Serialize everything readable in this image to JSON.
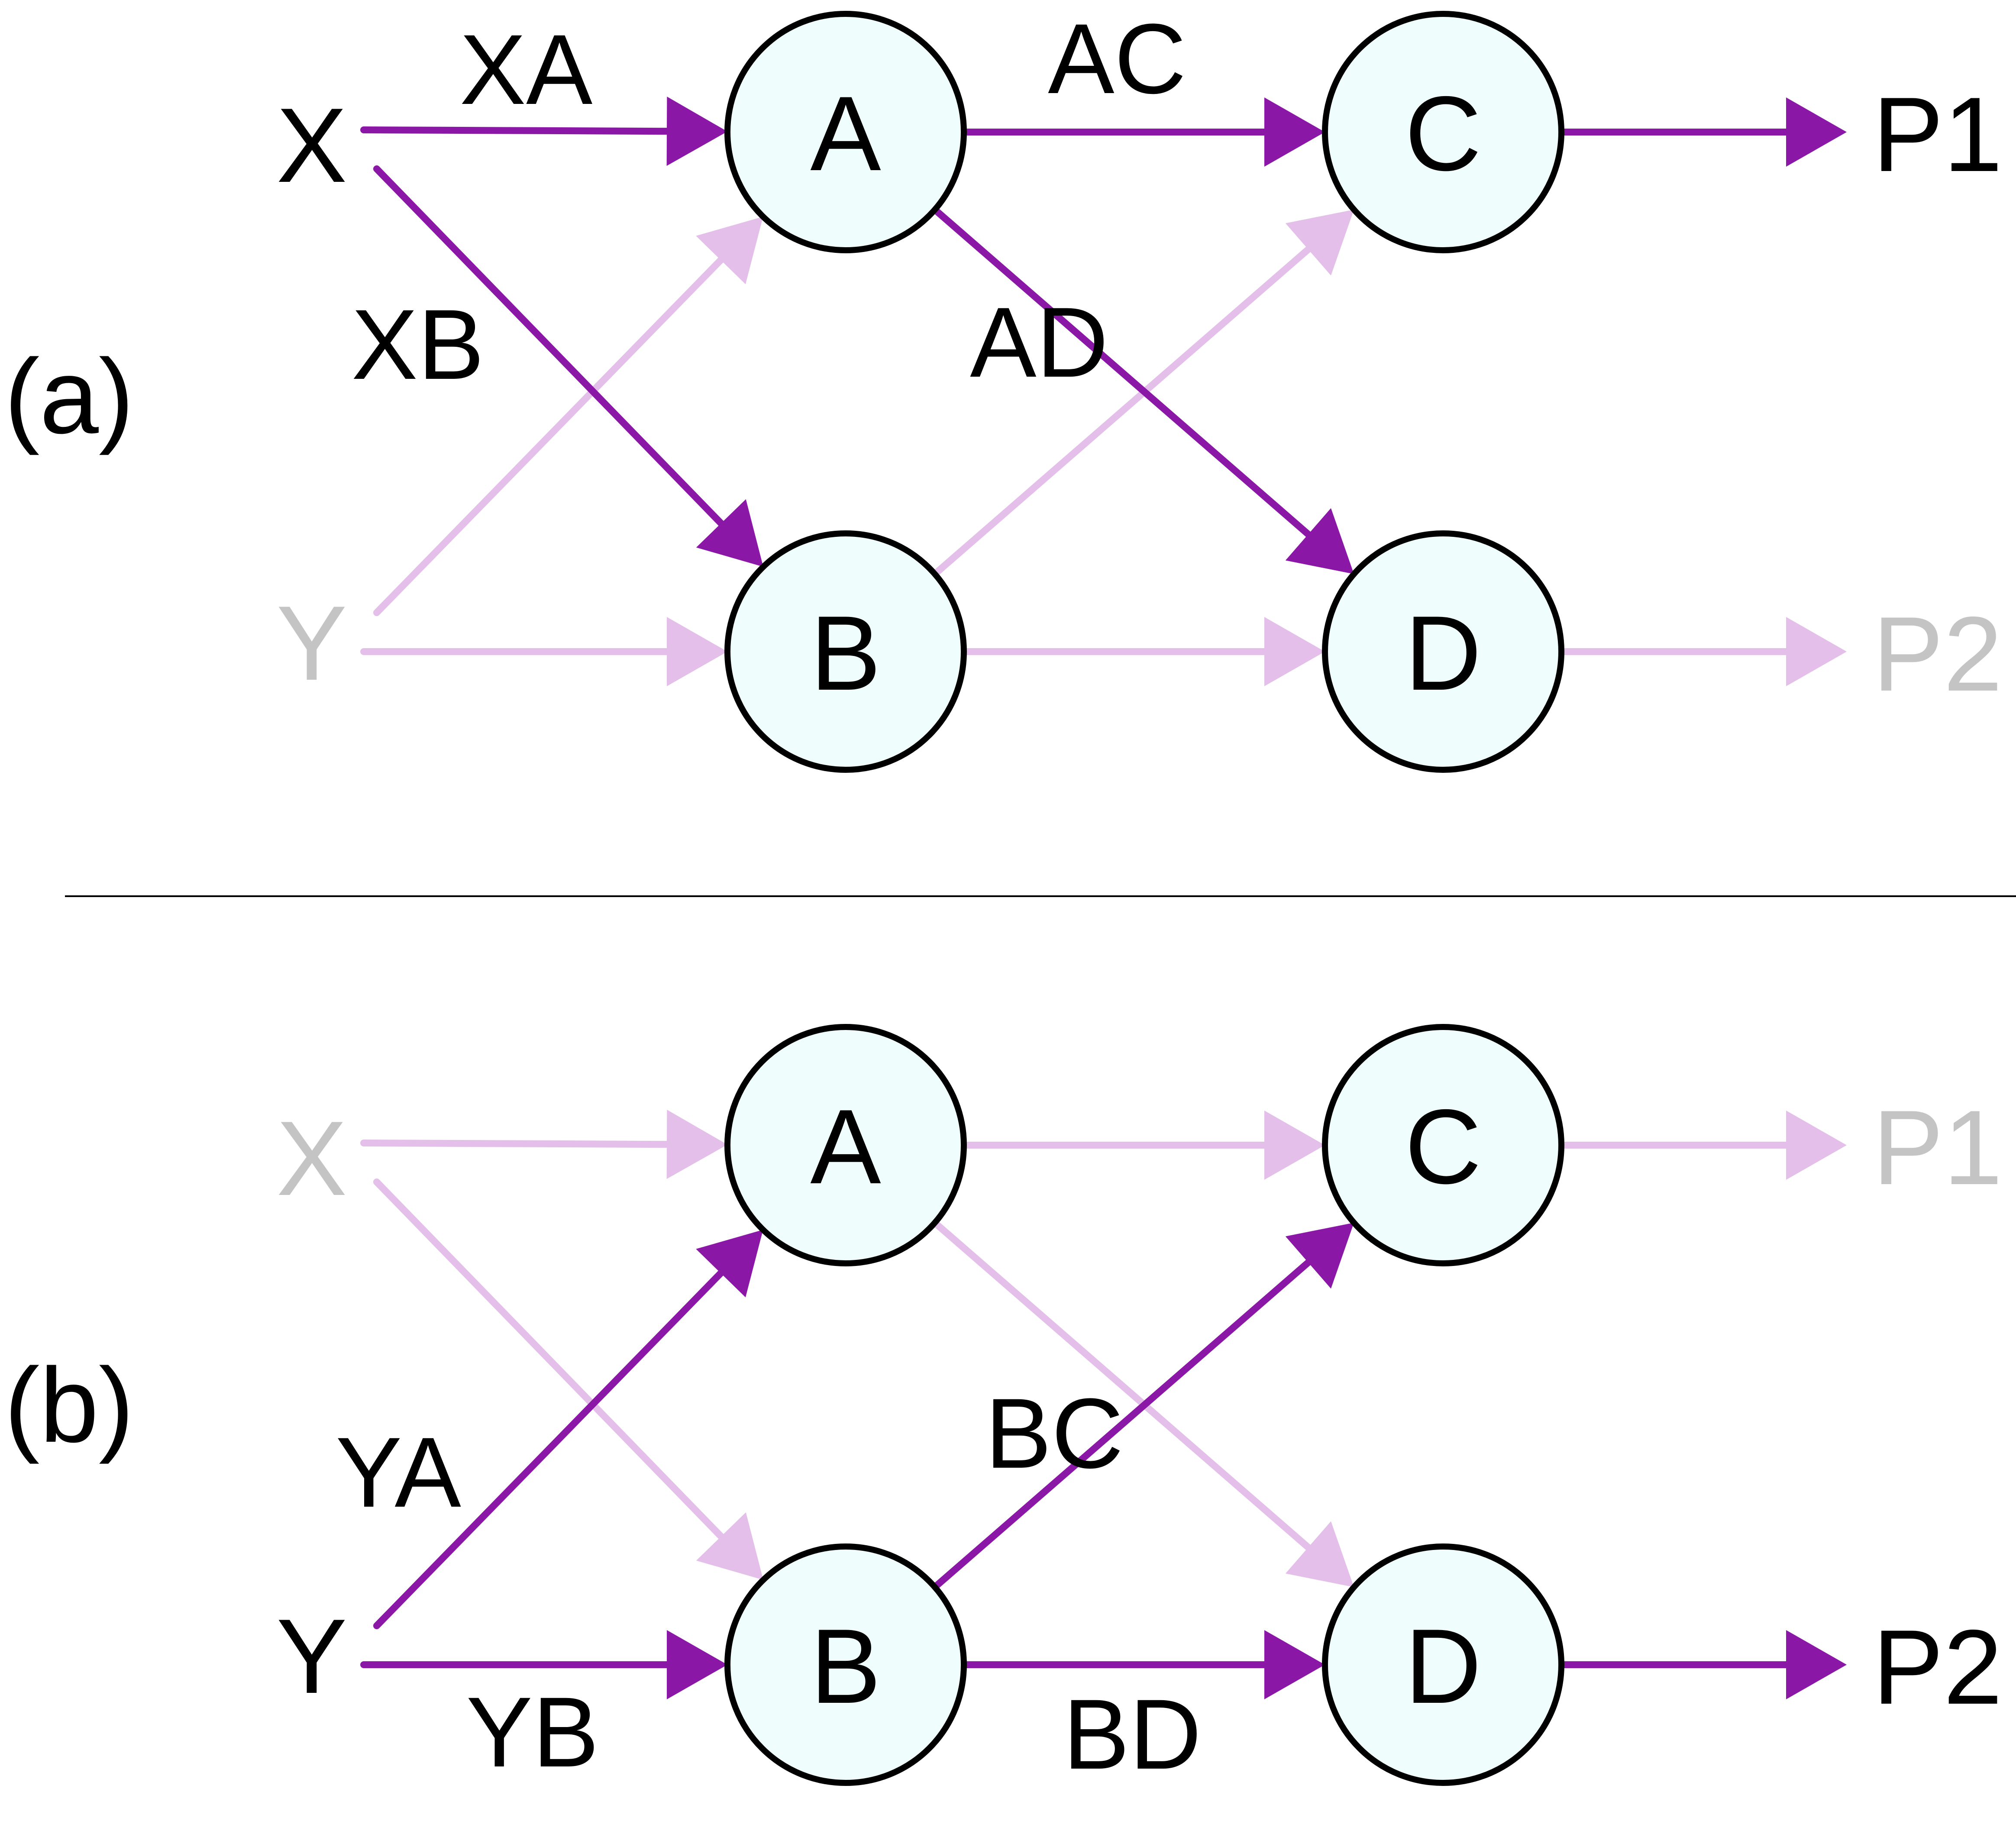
{
  "colors": {
    "active_edge": "#8B17A6",
    "faded_edge": "#E3BFEA",
    "active_text": "#000000",
    "faded_text": "#C4C4C4",
    "node_fill": "#EFFDFD",
    "node_stroke": "#000000",
    "divider": "#000000"
  },
  "panels": [
    {
      "id": "a",
      "tag": "(a)",
      "inputs": [
        {
          "label": "X",
          "active": true
        },
        {
          "label": "Y",
          "active": false
        }
      ],
      "nodes": {
        "A": "A",
        "B": "B",
        "C": "C",
        "D": "D"
      },
      "outputs": [
        {
          "label": "P1",
          "active": true
        },
        {
          "label": "P2",
          "active": false
        }
      ],
      "edges": [
        {
          "from": "X",
          "to": "A",
          "active": true,
          "label": "XA"
        },
        {
          "from": "X",
          "to": "B",
          "active": true,
          "label": "XB"
        },
        {
          "from": "Y",
          "to": "A",
          "active": false,
          "label": ""
        },
        {
          "from": "Y",
          "to": "B",
          "active": false,
          "label": ""
        },
        {
          "from": "A",
          "to": "C",
          "active": true,
          "label": "AC"
        },
        {
          "from": "A",
          "to": "D",
          "active": true,
          "label": "AD"
        },
        {
          "from": "B",
          "to": "C",
          "active": false,
          "label": ""
        },
        {
          "from": "B",
          "to": "D",
          "active": false,
          "label": ""
        },
        {
          "from": "C",
          "to": "P1",
          "active": true,
          "label": ""
        },
        {
          "from": "D",
          "to": "P2",
          "active": false,
          "label": ""
        }
      ]
    },
    {
      "id": "b",
      "tag": "(b)",
      "inputs": [
        {
          "label": "X",
          "active": false
        },
        {
          "label": "Y",
          "active": true
        }
      ],
      "nodes": {
        "A": "A",
        "B": "B",
        "C": "C",
        "D": "D"
      },
      "outputs": [
        {
          "label": "P1",
          "active": false
        },
        {
          "label": "P2",
          "active": true
        }
      ],
      "edges": [
        {
          "from": "X",
          "to": "A",
          "active": false,
          "label": ""
        },
        {
          "from": "X",
          "to": "B",
          "active": false,
          "label": ""
        },
        {
          "from": "Y",
          "to": "A",
          "active": true,
          "label": "YA"
        },
        {
          "from": "Y",
          "to": "B",
          "active": true,
          "label": "YB"
        },
        {
          "from": "A",
          "to": "C",
          "active": false,
          "label": ""
        },
        {
          "from": "A",
          "to": "D",
          "active": false,
          "label": ""
        },
        {
          "from": "B",
          "to": "C",
          "active": true,
          "label": "BC"
        },
        {
          "from": "B",
          "to": "D",
          "active": true,
          "label": "BD"
        },
        {
          "from": "C",
          "to": "P1",
          "active": false,
          "label": ""
        },
        {
          "from": "D",
          "to": "P2",
          "active": true,
          "label": ""
        }
      ]
    }
  ]
}
